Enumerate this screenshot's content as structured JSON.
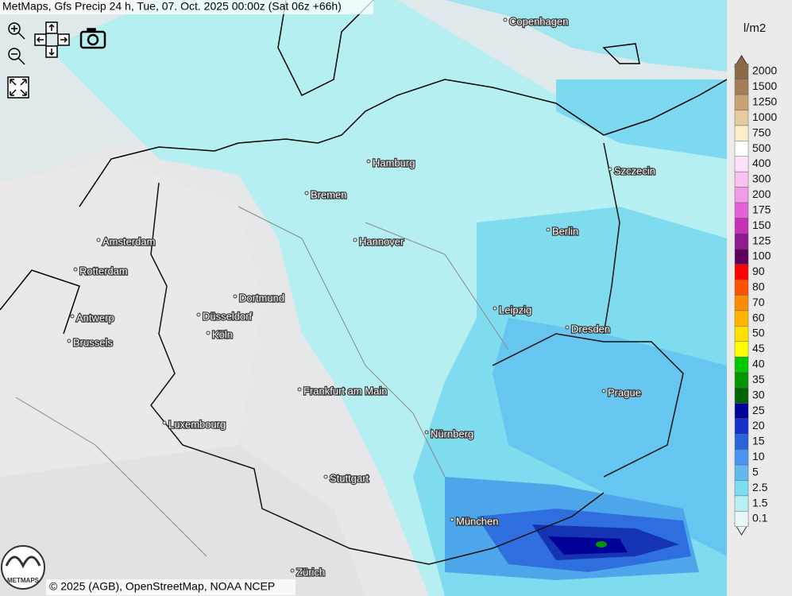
{
  "header": {
    "title": "MetMaps, Gfs Precip 24 h, Tue, 07. Oct. 2025 00:00z (Sat 06z +66h)"
  },
  "cities": [
    "Copenhagen",
    "Hamburg",
    "Szczecin",
    "Bremen",
    "Amsterdam",
    "Hannover",
    "Berlin",
    "Rotterdam",
    "Dortmund",
    "Leipzig",
    "Antwerp",
    "Düsseldorf",
    "Dresden",
    "Köln",
    "Brussels",
    "Frankfurt am Main",
    "Prague",
    "Luxembourg",
    "Nürnberg",
    "Stuttgart",
    "München",
    "Zürich"
  ],
  "legend": {
    "unit": "l/m2",
    "items": [
      {
        "label": "2000",
        "color": "#8c6a48"
      },
      {
        "label": "1500",
        "color": "#a47e58"
      },
      {
        "label": "1250",
        "color": "#c9a274"
      },
      {
        "label": "1000",
        "color": "#e6cb9c"
      },
      {
        "label": "750",
        "color": "#fbeec8"
      },
      {
        "label": "500",
        "color": "#ffffff"
      },
      {
        "label": "400",
        "color": "#fde2f8"
      },
      {
        "label": "300",
        "color": "#f9c2f0"
      },
      {
        "label": "200",
        "color": "#f29ae6"
      },
      {
        "label": "175",
        "color": "#e462d6"
      },
      {
        "label": "150",
        "color": "#c830b8"
      },
      {
        "label": "125",
        "color": "#901890"
      },
      {
        "label": "100",
        "color": "#5e005e"
      },
      {
        "label": "90",
        "color": "#ff0000"
      },
      {
        "label": "80",
        "color": "#ff5200"
      },
      {
        "label": "70",
        "color": "#ff8c00"
      },
      {
        "label": "60",
        "color": "#ffb400"
      },
      {
        "label": "50",
        "color": "#ffe000"
      },
      {
        "label": "45",
        "color": "#ffff00"
      },
      {
        "label": "40",
        "color": "#00c800"
      },
      {
        "label": "35",
        "color": "#009600"
      },
      {
        "label": "30",
        "color": "#006400"
      },
      {
        "label": "25",
        "color": "#000096"
      },
      {
        "label": "20",
        "color": "#1432c8"
      },
      {
        "label": "15",
        "color": "#2864dc"
      },
      {
        "label": "10",
        "color": "#4696f0"
      },
      {
        "label": "5",
        "color": "#64b8f0"
      },
      {
        "label": "2.5",
        "color": "#7cdcf0"
      },
      {
        "label": "1.5",
        "color": "#b6f0f2"
      },
      {
        "label": "0.1",
        "color": "#e8f8f8"
      }
    ]
  },
  "attribution": "© 2025 (AGB), OpenStreetMap, NOAA NCEP",
  "logo": "METMAPS"
}
